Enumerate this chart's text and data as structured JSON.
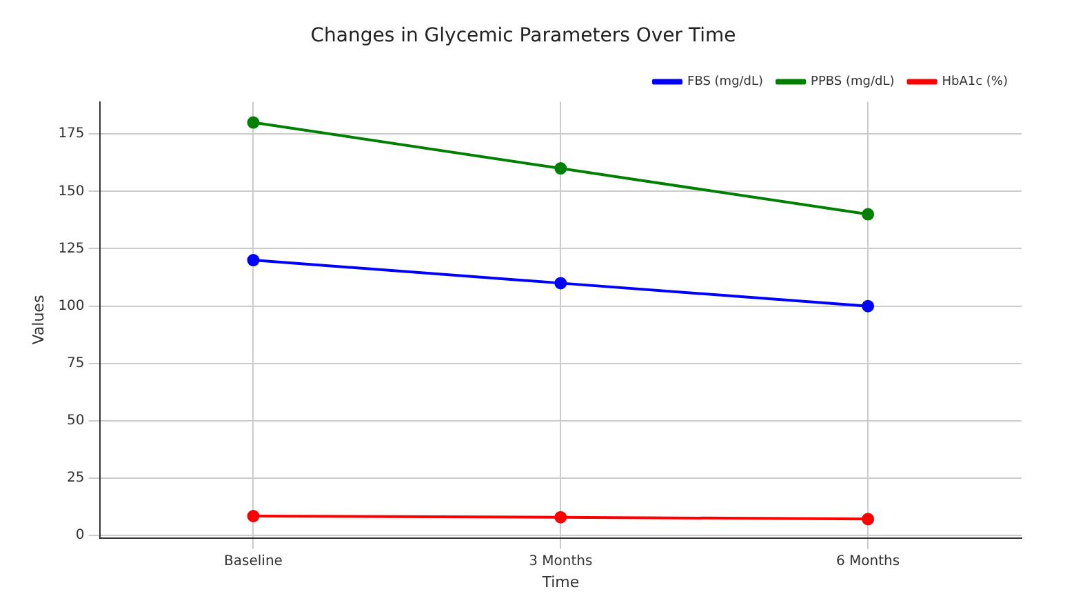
{
  "chart_data": {
    "type": "line",
    "title": "Changes in Glycemic Parameters Over Time",
    "xlabel": "Time",
    "ylabel": "Values",
    "categories": [
      "Baseline",
      "3 Months",
      "6 Months"
    ],
    "series": [
      {
        "name": "FBS (mg/dL)",
        "color": "#0000ff",
        "values": [
          120,
          110,
          100
        ]
      },
      {
        "name": "PPBS (mg/dL)",
        "color": "#008000",
        "values": [
          180,
          160,
          140
        ]
      },
      {
        "name": "HbA1c (%)",
        "color": "#ff0000",
        "values": [
          8.5,
          8,
          7.2
        ]
      }
    ],
    "ylim": [
      -1,
      189
    ],
    "yticks": [
      0,
      25,
      50,
      75,
      100,
      125,
      150,
      175
    ],
    "grid": true,
    "legend": "top right",
    "marker": "circle",
    "line_style": "solid"
  }
}
